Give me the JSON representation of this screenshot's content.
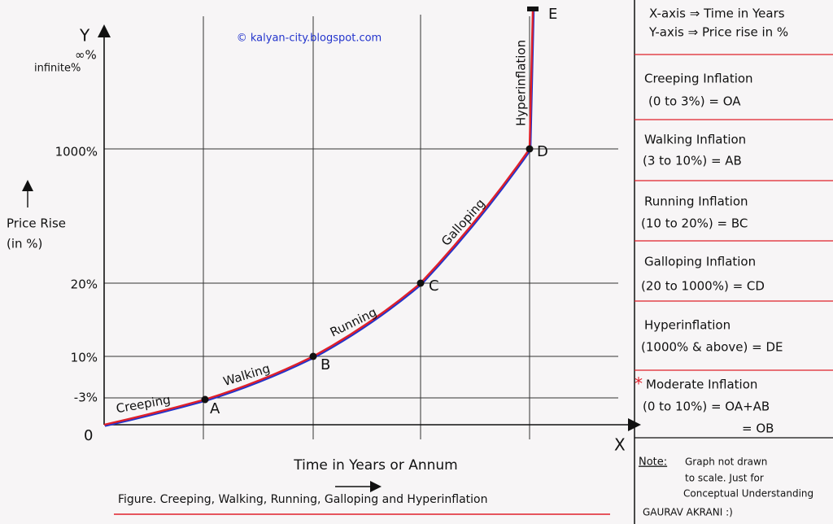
{
  "header": {
    "watermark": "© kalyan-city.blogspot.com"
  },
  "axes": {
    "y_label": "Y",
    "y_top": "∞%",
    "y_top_note": "infinite%",
    "y_title": "Price Rise",
    "y_unit": "(in %)",
    "x_label": "X",
    "origin": "0",
    "x_title": "Time in Years or Annum",
    "y_ticks": [
      "-3%",
      "10%",
      "20%",
      "1000%"
    ]
  },
  "points": [
    "A",
    "B",
    "C",
    "D",
    "E"
  ],
  "stages": [
    "Creeping",
    "Walking",
    "Running",
    "Galloping",
    "Hyperinflation"
  ],
  "caption": "Figure. Creeping, Walking, Running, Galloping and Hyperinflation",
  "legend": {
    "axes": [
      "X-axis ⇒ Time in Years",
      "Y-axis ⇒ Price rise in %"
    ],
    "entries": [
      {
        "name": "Creeping Inflation",
        "range": "(0 to 3%) = OA"
      },
      {
        "name": "Walking Inflation",
        "range": "(3 to 10%) = AB"
      },
      {
        "name": "Running Inflation",
        "range": "(10 to 20%) = BC"
      },
      {
        "name": "Galloping Inflation",
        "range": "(20 to 1000%) = CD"
      },
      {
        "name": "Hyperinflation",
        "range": "(1000% & above) = DE"
      }
    ],
    "moderate": {
      "mark": "*",
      "name": "Moderate Inflation",
      "range": "(0 to 10%) = OA+AB",
      "equals": "= OB"
    }
  },
  "note": {
    "label": "Note:",
    "lines": [
      "Graph not drawn",
      "to scale. Just for",
      "Conceptual Understanding"
    ],
    "author": "GAURAV AKRANI :)"
  }
}
